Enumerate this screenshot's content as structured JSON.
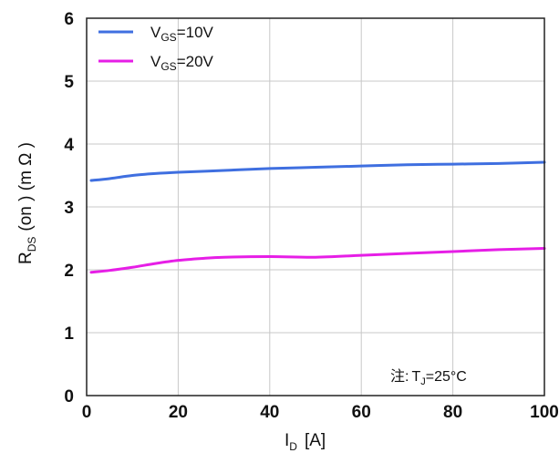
{
  "chart_data": {
    "type": "line",
    "xlim": [
      0,
      100
    ],
    "ylim": [
      0,
      6
    ],
    "xticks": [
      0,
      20,
      40,
      60,
      80,
      100
    ],
    "yticks": [
      0,
      1,
      2,
      3,
      4,
      5,
      6
    ],
    "grid": true,
    "legend_position": "top-left",
    "xlabel": {
      "main": "I",
      "sub": "D",
      "unit": "[A]"
    },
    "ylabel": {
      "main": "R",
      "sub": "DS",
      "rest": "(on ) (m Ω )"
    },
    "annotation": {
      "prefix": "注:",
      "main": "T",
      "sub": "J",
      "rest": "=25°C"
    },
    "series": [
      {
        "name": "VGS=10V",
        "label_main": "V",
        "label_sub": "GS",
        "label_rest": "=10V",
        "color": "#3f6fe0",
        "x": [
          1,
          5,
          10,
          15,
          20,
          30,
          40,
          50,
          60,
          70,
          80,
          90,
          100
        ],
        "y": [
          3.42,
          3.45,
          3.5,
          3.53,
          3.55,
          3.58,
          3.61,
          3.63,
          3.65,
          3.67,
          3.68,
          3.69,
          3.71
        ]
      },
      {
        "name": "VGS=20V",
        "label_main": "V",
        "label_sub": "GS",
        "label_rest": "=20V",
        "color": "#e61ee6",
        "x": [
          1,
          5,
          10,
          15,
          20,
          25,
          30,
          40,
          50,
          60,
          70,
          80,
          90,
          100
        ],
        "y": [
          1.96,
          1.99,
          2.04,
          2.1,
          2.15,
          2.18,
          2.2,
          2.21,
          2.2,
          2.23,
          2.26,
          2.29,
          2.32,
          2.34
        ]
      }
    ]
  }
}
